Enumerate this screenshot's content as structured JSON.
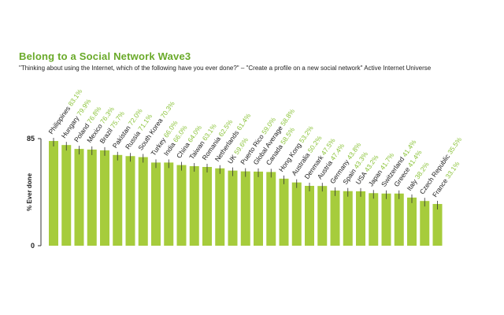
{
  "title": "Belong to a Social Network Wave3",
  "subtitle": "\"Thinking about using the Internet, which of the following have you ever done?\" – \"Create a profile on a new social network\" Active Internet Universe",
  "colors": {
    "bar": "#a6cc3c",
    "label_value": "#8cc43c",
    "label_name": "#222222",
    "title": "#6aaa2a"
  },
  "chart_data": {
    "type": "bar",
    "title": "Belong to a Social Network Wave3",
    "ylabel": "% Ever done",
    "ylim": [
      0,
      85
    ],
    "yticks": [
      "0",
      "85"
    ],
    "categories": [
      "Philippines",
      "Hungary",
      "Poland",
      "Mexico",
      "Brazil",
      "Pakistan",
      "Russia",
      "South Korea",
      "Turkey",
      "India",
      "China",
      "Taiwan",
      "Romania",
      "Netherlands",
      "UK",
      "Puerto Rico",
      "Global Average",
      "Canada",
      "Hong Kong",
      "Australia",
      "Denmark",
      "Austria",
      "Germany",
      "Spain",
      "USA",
      "Japan",
      "Switzerland",
      "Greece",
      "Italy",
      "Czech Republic",
      "France"
    ],
    "values": [
      83.1,
      79.9,
      76.8,
      76.3,
      75.7,
      72.0,
      71.1,
      70.3,
      66.0,
      66.0,
      64.0,
      63.1,
      62.5,
      61.4,
      59.6,
      59.0,
      58.8,
      58.5,
      53.2,
      50.2,
      47.5,
      47.4,
      43.8,
      43.3,
      43.2,
      41.7,
      41.4,
      41.4,
      38.2,
      35.5,
      33.1
    ],
    "value_labels": [
      "83.1%",
      "79.9%",
      "76.8%",
      "76.3%",
      "75.7%",
      "72.0%",
      "71.1%",
      "70.3%",
      "66.0%",
      "66.0%",
      "64.0%",
      "63.1%",
      "62.5%",
      "61.4%",
      "59.6%",
      "59.0%",
      "58.8%",
      "58.5%",
      "53.2%",
      "50.2%",
      "47.5%",
      "47.4%",
      "43.8%",
      "43.3%",
      "43.2%",
      "41.7%",
      "41.4%",
      "41.4%",
      "38.2%",
      "35.5%",
      "33.1%"
    ]
  }
}
